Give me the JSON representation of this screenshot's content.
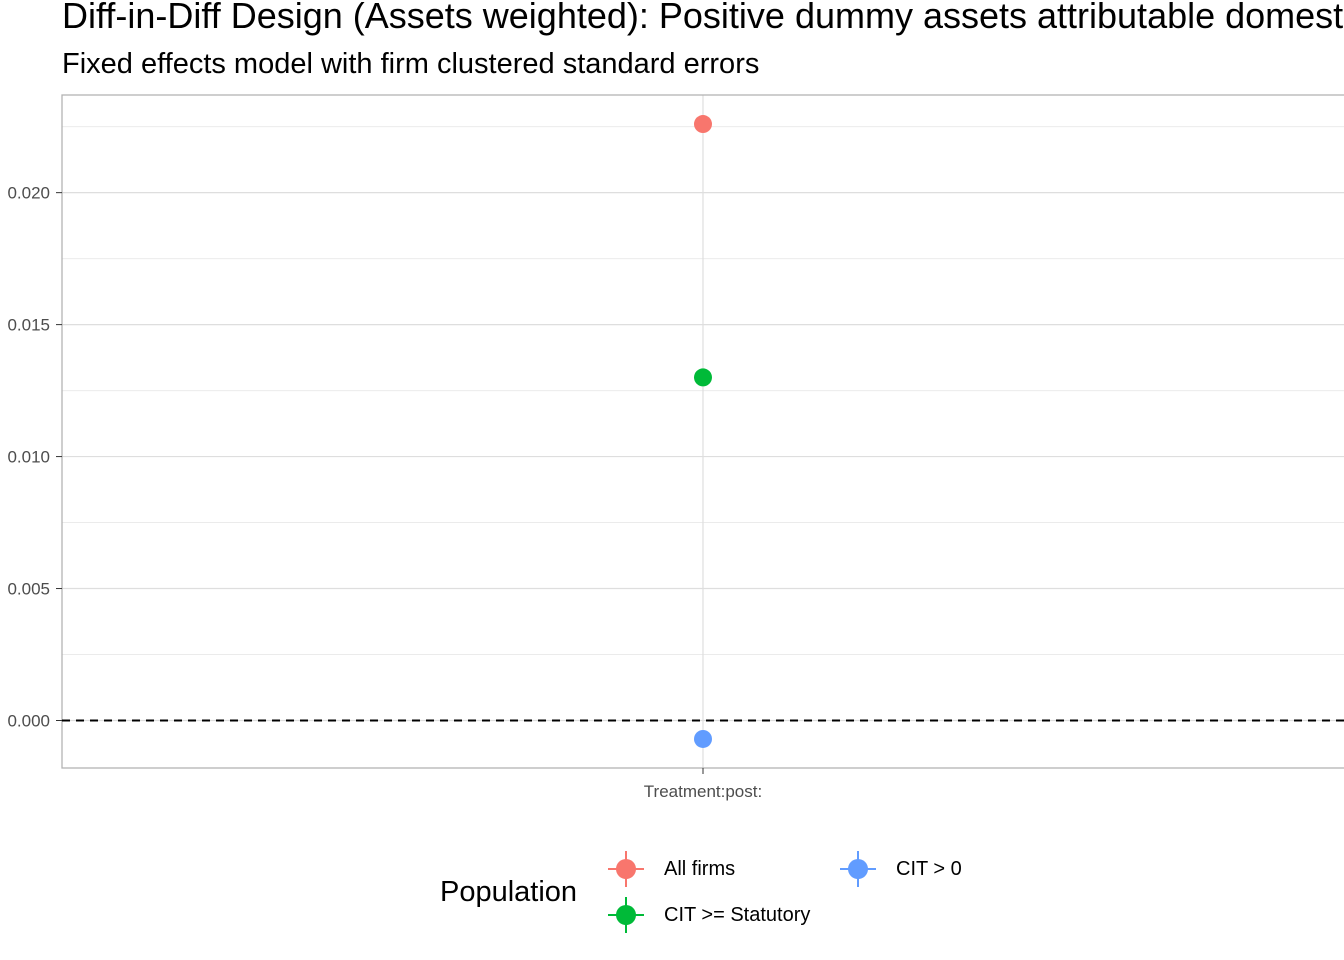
{
  "chart_data": {
    "type": "scatter",
    "title": "Diff-in-Diff Design (Assets weighted): Positive dummy assets attributable domestic",
    "subtitle": "Fixed effects model with firm clustered standard errors",
    "xlabel": "",
    "ylabel": "",
    "categories": [
      "Treatment:post:"
    ],
    "ylim": [
      -0.0018,
      0.0237
    ],
    "y_ticks": [
      0.0,
      0.005,
      0.01,
      0.015,
      0.02
    ],
    "y_tick_labels": [
      "0.000",
      "0.005",
      "0.010",
      "0.015",
      "0.020"
    ],
    "reference_line": {
      "y": 0,
      "style": "dashed"
    },
    "grid": true,
    "legend": {
      "title": "Population",
      "placement": "bottom"
    },
    "series": [
      {
        "name": "All firms",
        "color": "#F8766D",
        "values": [
          0.0226
        ]
      },
      {
        "name": "CIT >= Statutory",
        "color": "#00BA38",
        "values": [
          0.013
        ]
      },
      {
        "name": "CIT > 0",
        "color": "#619CFF",
        "values": [
          -0.0007
        ]
      }
    ]
  }
}
